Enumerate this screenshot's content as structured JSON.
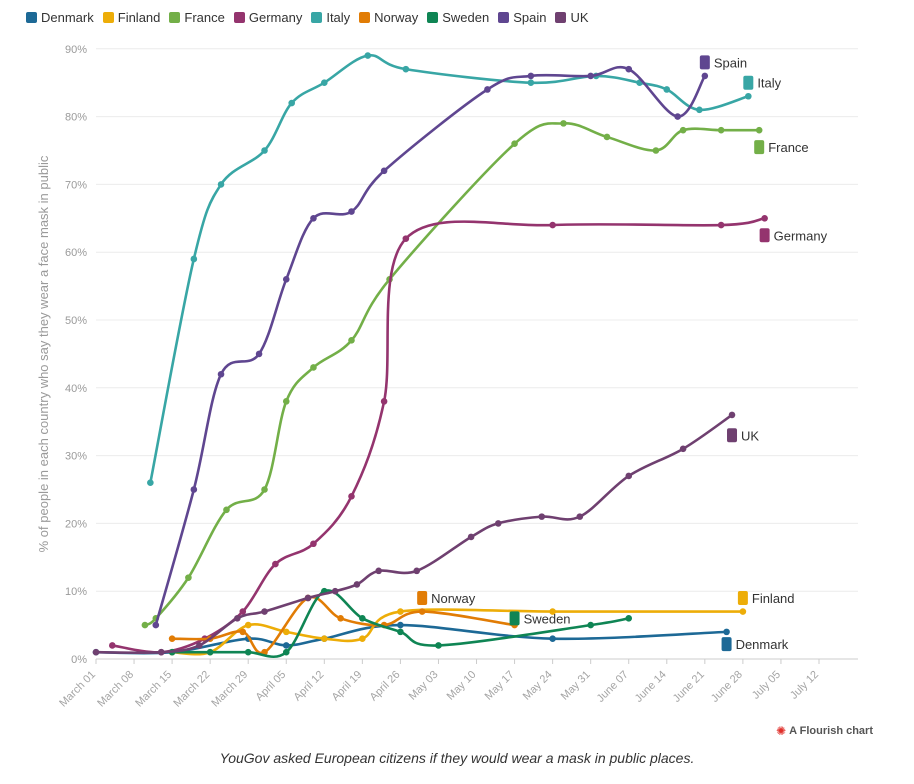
{
  "chart_data": {
    "type": "line",
    "title": "",
    "ylabel": "% of people in each country who say they wear a face mask in public",
    "xlabel": "",
    "ylim": [
      0,
      90
    ],
    "x_ticks": [
      "March 01",
      "March 08",
      "March 15",
      "March 22",
      "March 29",
      "April 05",
      "April 12",
      "April 19",
      "April 26",
      "May 03",
      "May 10",
      "May 17",
      "May 24",
      "May 31",
      "June 07",
      "June 14",
      "June 21",
      "June 28",
      "July 05",
      "July 12"
    ],
    "y_ticks": [
      "0%",
      "10%",
      "20%",
      "30%",
      "40%",
      "50%",
      "60%",
      "70%",
      "80%",
      "90%"
    ],
    "series": [
      {
        "name": "Denmark",
        "color": "#1d6996",
        "points": [
          [
            0,
            1
          ],
          [
            14,
            1
          ],
          [
            28,
            3
          ],
          [
            35,
            2
          ],
          [
            42,
            3
          ],
          [
            56,
            5
          ],
          [
            84,
            3
          ],
          [
            116,
            4
          ]
        ]
      },
      {
        "name": "Finland",
        "color": "#edad08",
        "points": [
          [
            14,
            1
          ],
          [
            21,
            1
          ],
          [
            28,
            5
          ],
          [
            35,
            4
          ],
          [
            42,
            3
          ],
          [
            49,
            3
          ],
          [
            56,
            7
          ],
          [
            84,
            7
          ],
          [
            119,
            7
          ]
        ]
      },
      {
        "name": "France",
        "color": "#73af48",
        "points": [
          [
            9,
            5
          ],
          [
            11,
            6
          ],
          [
            17,
            12
          ],
          [
            24,
            22
          ],
          [
            31,
            25
          ],
          [
            35,
            38
          ],
          [
            40,
            43
          ],
          [
            47,
            47
          ],
          [
            54,
            56
          ],
          [
            77,
            76
          ],
          [
            86,
            79
          ],
          [
            94,
            77
          ],
          [
            103,
            75
          ],
          [
            108,
            78
          ],
          [
            115,
            78
          ],
          [
            122,
            78
          ]
        ]
      },
      {
        "name": "Germany",
        "color": "#94346e",
        "points": [
          [
            3,
            2
          ],
          [
            12,
            1
          ],
          [
            20,
            3
          ],
          [
            27,
            7
          ],
          [
            33,
            14
          ],
          [
            40,
            17
          ],
          [
            47,
            24
          ],
          [
            53,
            38
          ],
          [
            57,
            62
          ],
          [
            84,
            64
          ],
          [
            115,
            64
          ],
          [
            123,
            65
          ]
        ]
      },
      {
        "name": "Italy",
        "color": "#38a6a5",
        "points": [
          [
            10,
            26
          ],
          [
            18,
            59
          ],
          [
            23,
            70
          ],
          [
            31,
            75
          ],
          [
            36,
            82
          ],
          [
            42,
            85
          ],
          [
            50,
            89
          ],
          [
            57,
            87
          ],
          [
            80,
            85
          ],
          [
            92,
            86
          ],
          [
            100,
            85
          ],
          [
            105,
            84
          ],
          [
            111,
            81
          ],
          [
            120,
            83
          ]
        ]
      },
      {
        "name": "Norway",
        "color": "#e17c05",
        "points": [
          [
            14,
            3
          ],
          [
            21,
            3
          ],
          [
            27,
            4
          ],
          [
            31,
            1
          ],
          [
            39,
            9
          ],
          [
            45,
            6
          ],
          [
            53,
            5
          ],
          [
            60,
            7
          ],
          [
            77,
            5
          ]
        ]
      },
      {
        "name": "Sweden",
        "color": "#0f8554",
        "points": [
          [
            14,
            1
          ],
          [
            21,
            1
          ],
          [
            28,
            1
          ],
          [
            35,
            1
          ],
          [
            42,
            10
          ],
          [
            49,
            6
          ],
          [
            56,
            4
          ],
          [
            63,
            2
          ],
          [
            91,
            5
          ],
          [
            98,
            6
          ]
        ]
      },
      {
        "name": "Spain",
        "color": "#5f4690",
        "points": [
          [
            11,
            5
          ],
          [
            18,
            25
          ],
          [
            23,
            42
          ],
          [
            30,
            45
          ],
          [
            35,
            56
          ],
          [
            40,
            65
          ],
          [
            47,
            66
          ],
          [
            53,
            72
          ],
          [
            72,
            84
          ],
          [
            80,
            86
          ],
          [
            91,
            86
          ],
          [
            98,
            87
          ],
          [
            107,
            80
          ],
          [
            112,
            86
          ]
        ]
      },
      {
        "name": "UK",
        "color": "#6f4070",
        "points": [
          [
            0,
            1
          ],
          [
            12,
            1
          ],
          [
            19,
            2
          ],
          [
            26,
            6
          ],
          [
            31,
            7
          ],
          [
            39,
            9
          ],
          [
            44,
            10
          ],
          [
            48,
            11
          ],
          [
            52,
            13
          ],
          [
            59,
            13
          ],
          [
            69,
            18
          ],
          [
            74,
            20
          ],
          [
            82,
            21
          ],
          [
            89,
            21
          ],
          [
            98,
            27
          ],
          [
            108,
            31
          ],
          [
            117,
            36
          ]
        ]
      }
    ],
    "end_labels": [
      {
        "name": "Spain",
        "color": "#5f4690",
        "x": 112,
        "y": 88
      },
      {
        "name": "Italy",
        "color": "#38a6a5",
        "x": 120,
        "y": 85
      },
      {
        "name": "France",
        "color": "#73af48",
        "x": 122,
        "y": 75.5
      },
      {
        "name": "Germany",
        "color": "#94346e",
        "x": 123,
        "y": 62.5
      },
      {
        "name": "UK",
        "color": "#6f4070",
        "x": 117,
        "y": 33
      },
      {
        "name": "Norway",
        "color": "#e17c05",
        "x": 60,
        "y": 9
      },
      {
        "name": "Finland",
        "color": "#edad08",
        "x": 119,
        "y": 9
      },
      {
        "name": "Sweden",
        "color": "#0f8554",
        "x": 77,
        "y": 6
      },
      {
        "name": "Denmark",
        "color": "#1d6996",
        "x": 116,
        "y": 2.2
      }
    ]
  },
  "credit": {
    "icon": "flourish-logo-icon",
    "label": "A Flourish chart"
  },
  "caption": "YouGov asked European citizens if they would wear a mask in public places."
}
